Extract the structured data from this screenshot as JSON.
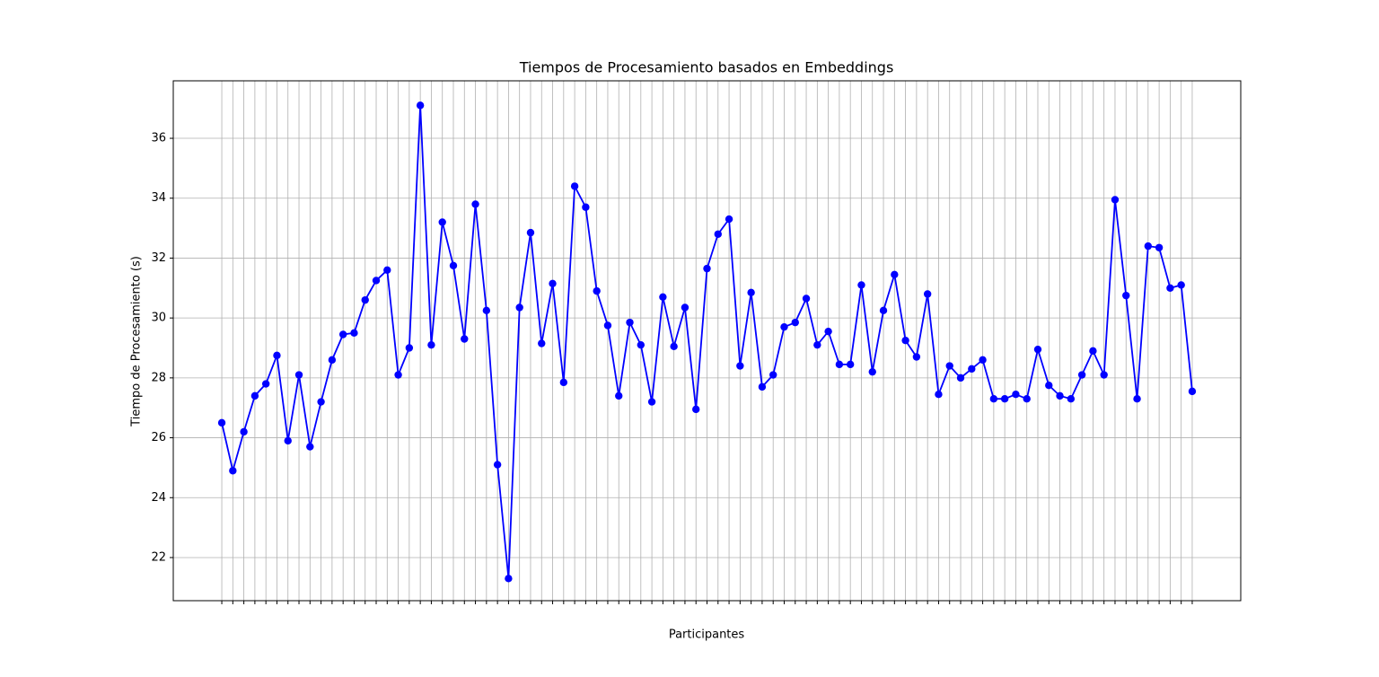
{
  "chart_data": {
    "type": "line",
    "title": "Tiempos de Procesamiento basados en Embeddings",
    "x_label": "Participantes",
    "y_label": "Tiempo de Procesamiento (s)",
    "categories": [
      null,
      null,
      null,
      null,
      null,
      null,
      null,
      null,
      null,
      null,
      null,
      null,
      null,
      null,
      null,
      null,
      null,
      null,
      null,
      null,
      null,
      null,
      null,
      null,
      null,
      null,
      null,
      null,
      null,
      null,
      null,
      null,
      null,
      null,
      null,
      null,
      null,
      null,
      null,
      null,
      null,
      null,
      null,
      null,
      null,
      null,
      null,
      null,
      null,
      null,
      null,
      null,
      null,
      null,
      null,
      null,
      null,
      null,
      null,
      null,
      null,
      null,
      null,
      null,
      null,
      null,
      null,
      null,
      null,
      null,
      null,
      null,
      null,
      null,
      null,
      null,
      null,
      null,
      null,
      null,
      null,
      null,
      null,
      null,
      null,
      null,
      null,
      null,
      null
    ],
    "series": [
      {
        "name": null,
        "color": "#0000ff",
        "values": [
          26.5,
          24.9,
          26.2,
          27.4,
          27.8,
          28.75,
          25.9,
          28.1,
          25.7,
          27.2,
          28.6,
          29.45,
          29.5,
          30.6,
          31.25,
          31.6,
          28.1,
          29.0,
          37.1,
          29.1,
          33.2,
          31.75,
          29.3,
          33.8,
          30.25,
          25.1,
          21.3,
          30.35,
          32.85,
          29.15,
          31.15,
          27.85,
          34.4,
          33.7,
          30.9,
          29.75,
          27.4,
          29.85,
          29.1,
          27.2,
          30.7,
          29.05,
          30.35,
          26.95,
          31.65,
          32.8,
          33.3,
          28.4,
          30.85,
          27.7,
          28.1,
          29.7,
          29.85,
          30.65,
          29.1,
          29.55,
          28.45,
          28.45,
          31.1,
          28.2,
          30.25,
          31.45,
          29.25,
          28.7,
          30.8,
          27.45,
          28.4,
          28.0,
          28.3,
          28.6,
          27.3,
          27.3,
          27.45,
          27.3,
          28.95,
          27.75,
          27.4,
          27.3,
          28.1,
          28.9,
          28.1,
          33.95,
          30.75,
          27.3,
          32.4,
          32.35,
          31.0,
          31.1,
          27.55
        ]
      }
    ],
    "ylim": [
      20.56,
      37.92
    ],
    "yticks": [
      22,
      24,
      26,
      28,
      30,
      32,
      34,
      36
    ],
    "grid": true,
    "marker": "circle"
  }
}
